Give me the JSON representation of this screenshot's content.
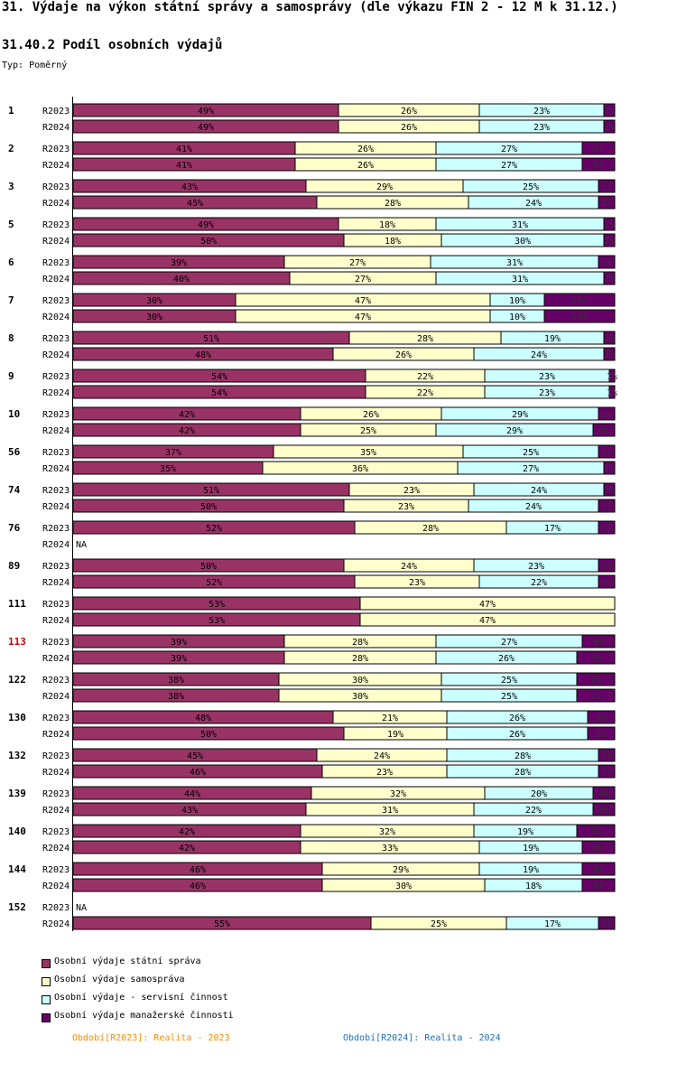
{
  "title": "31. Výdaje na výkon státní správy a samosprávy (dle výkazu FIN 2 - 12 M k 31.12.)",
  "subtitle": "31.40.2 Podíl osobních výdajů",
  "typ": "Typ: Poměrný",
  "colors": {
    "statni": "#993366",
    "samosprava": "#ffffcc",
    "servisni": "#ccffff",
    "manazerske": "#660066",
    "highlight": "#cc0000",
    "footer1": "#ff8c00",
    "footer2": "#1f6fb2"
  },
  "legend": [
    {
      "label": "Osobní výdaje státní správa",
      "color": "#993366"
    },
    {
      "label": "Osobní výdaje samospráva",
      "color": "#ffffcc"
    },
    {
      "label": "Osobní výdaje - servisní činnost",
      "color": "#ccffff"
    },
    {
      "label": "Osobní výdaje manažerské činnosti",
      "color": "#660066"
    }
  ],
  "footer": {
    "r2023": "Období[R2023]: Realita - 2023",
    "r2024": "Období[R2024]: Realita - 2024"
  },
  "chart_data": {
    "type": "bar",
    "stacked": true,
    "orientation": "horizontal",
    "percent": true,
    "series_names": [
      "Osobní výdaje státní správa",
      "Osobní výdaje samospráva",
      "Osobní výdaje - servisní činnost",
      "Osobní výdaje manažerské činnosti"
    ],
    "highlight_group": "113",
    "na_label": "NA",
    "groups": [
      {
        "label": "1",
        "rows": [
          {
            "period": "R2023",
            "values": [
              49,
              26,
              23,
              2
            ]
          },
          {
            "period": "R2024",
            "values": [
              49,
              26,
              23,
              2
            ]
          }
        ]
      },
      {
        "label": "2",
        "rows": [
          {
            "period": "R2023",
            "values": [
              41,
              26,
              27,
              6
            ]
          },
          {
            "period": "R2024",
            "values": [
              41,
              26,
              27,
              6
            ]
          }
        ]
      },
      {
        "label": "3",
        "rows": [
          {
            "period": "R2023",
            "values": [
              43,
              29,
              25,
              3
            ]
          },
          {
            "period": "R2024",
            "values": [
              45,
              28,
              24,
              3
            ]
          }
        ]
      },
      {
        "label": "5",
        "rows": [
          {
            "period": "R2023",
            "values": [
              49,
              18,
              31,
              2
            ]
          },
          {
            "period": "R2024",
            "values": [
              50,
              18,
              30,
              2
            ]
          }
        ]
      },
      {
        "label": "6",
        "rows": [
          {
            "period": "R2023",
            "values": [
              39,
              27,
              31,
              3
            ]
          },
          {
            "period": "R2024",
            "values": [
              40,
              27,
              31,
              2
            ]
          }
        ]
      },
      {
        "label": "7",
        "rows": [
          {
            "period": "R2023",
            "values": [
              30,
              47,
              10,
              13
            ]
          },
          {
            "period": "R2024",
            "values": [
              30,
              47,
              10,
              13
            ]
          }
        ]
      },
      {
        "label": "8",
        "rows": [
          {
            "period": "R2023",
            "values": [
              51,
              28,
              19,
              2
            ]
          },
          {
            "period": "R2024",
            "values": [
              48,
              26,
              24,
              2
            ]
          }
        ]
      },
      {
        "label": "9",
        "rows": [
          {
            "period": "R2023",
            "values": [
              54,
              22,
              23,
              1
            ]
          },
          {
            "period": "R2024",
            "values": [
              54,
              22,
              23,
              1
            ]
          }
        ]
      },
      {
        "label": "10",
        "rows": [
          {
            "period": "R2023",
            "values": [
              42,
              26,
              29,
              3
            ]
          },
          {
            "period": "R2024",
            "values": [
              42,
              25,
              29,
              4
            ]
          }
        ]
      },
      {
        "label": "56",
        "rows": [
          {
            "period": "R2023",
            "values": [
              37,
              35,
              25,
              3
            ]
          },
          {
            "period": "R2024",
            "values": [
              35,
              36,
              27,
              2
            ]
          }
        ]
      },
      {
        "label": "74",
        "rows": [
          {
            "period": "R2023",
            "values": [
              51,
              23,
              24,
              2
            ]
          },
          {
            "period": "R2024",
            "values": [
              50,
              23,
              24,
              3
            ]
          }
        ]
      },
      {
        "label": "76",
        "rows": [
          {
            "period": "R2023",
            "values": [
              52,
              28,
              17,
              3
            ]
          },
          {
            "period": "R2024",
            "values": null
          }
        ]
      },
      {
        "label": "89",
        "rows": [
          {
            "period": "R2023",
            "values": [
              50,
              24,
              23,
              3
            ]
          },
          {
            "period": "R2024",
            "values": [
              52,
              23,
              22,
              3
            ]
          }
        ]
      },
      {
        "label": "111",
        "rows": [
          {
            "period": "R2023",
            "values": [
              53,
              47,
              0,
              0
            ]
          },
          {
            "period": "R2024",
            "values": [
              53,
              47,
              0,
              0
            ]
          }
        ]
      },
      {
        "label": "113",
        "rows": [
          {
            "period": "R2023",
            "values": [
              39,
              28,
              27,
              6
            ]
          },
          {
            "period": "R2024",
            "values": [
              39,
              28,
              26,
              7
            ]
          }
        ]
      },
      {
        "label": "122",
        "rows": [
          {
            "period": "R2023",
            "values": [
              38,
              30,
              25,
              7
            ]
          },
          {
            "period": "R2024",
            "values": [
              38,
              30,
              25,
              7
            ]
          }
        ]
      },
      {
        "label": "130",
        "rows": [
          {
            "period": "R2023",
            "values": [
              48,
              21,
              26,
              5
            ]
          },
          {
            "period": "R2024",
            "values": [
              50,
              19,
              26,
              5
            ]
          }
        ]
      },
      {
        "label": "132",
        "rows": [
          {
            "period": "R2023",
            "values": [
              45,
              24,
              28,
              3
            ]
          },
          {
            "period": "R2024",
            "values": [
              46,
              23,
              28,
              3
            ]
          }
        ]
      },
      {
        "label": "139",
        "rows": [
          {
            "period": "R2023",
            "values": [
              44,
              32,
              20,
              4
            ]
          },
          {
            "period": "R2024",
            "values": [
              43,
              31,
              22,
              4
            ]
          }
        ]
      },
      {
        "label": "140",
        "rows": [
          {
            "period": "R2023",
            "values": [
              42,
              32,
              19,
              7
            ]
          },
          {
            "period": "R2024",
            "values": [
              42,
              33,
              19,
              6
            ]
          }
        ]
      },
      {
        "label": "144",
        "rows": [
          {
            "period": "R2023",
            "values": [
              46,
              29,
              19,
              6
            ]
          },
          {
            "period": "R2024",
            "values": [
              46,
              30,
              18,
              6
            ]
          }
        ]
      },
      {
        "label": "152",
        "rows": [
          {
            "period": "R2023",
            "values": null
          },
          {
            "period": "R2024",
            "values": [
              55,
              25,
              17,
              3
            ]
          }
        ]
      }
    ]
  }
}
